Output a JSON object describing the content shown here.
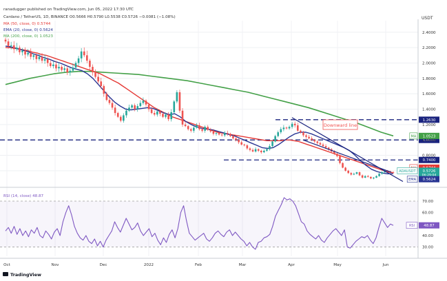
{
  "header": {
    "line1": "ranadugger published on TradingView.com, Jun 05, 2022 17:30 UTC",
    "line2": "Cardano / TetherUS, 1D, BINANCE  O0.5666  H0.5790  L0.5538  C0.5726  −0.0081 (−1.08%)",
    "ma50": "MA (50, close, 0)  0.5744",
    "ema20": "EMA (20, close, 0)  0.5624",
    "ma200": "MA (200, close, 0)  1.0523",
    "rsi": "RSI (14, close)  48.87"
  },
  "currency": "USDT",
  "footer": {
    "logo": "TradingView"
  },
  "annotation": "Downward line",
  "colors": {
    "up": "#26a69a",
    "down": "#ef5350",
    "ma50": "#e53935",
    "ema20": "#283593",
    "ma200": "#43a047",
    "rsi": "#7e57c2",
    "level": "#1a237e",
    "wedge": "#1a237e"
  },
  "chart_data": {
    "type": "candlestick",
    "ylim": [
      0.42,
      2.55
    ],
    "price_ticks": [
      "2.4000",
      "2.2000",
      "2.0000",
      "1.8000",
      "1.6000",
      "1.4000",
      "1.2000",
      "1.0000",
      "0.8000",
      "0.6000"
    ],
    "x_ticks": [
      "Oct",
      "Nov",
      "Dec",
      "2022",
      "Feb",
      "Mar",
      "Apr",
      "May",
      "Jun"
    ],
    "horizontal_levels": [
      {
        "value": 1.263,
        "label": "1.2630"
      },
      {
        "value": 1.0,
        "label": "1.0000"
      },
      {
        "value": 0.74,
        "label": "0.7400"
      }
    ],
    "price_badges": [
      {
        "tag": "MA",
        "label": "1.0523",
        "color": "#43a047"
      },
      {
        "tag": "MA",
        "label": "0.5744",
        "color": "#e53935"
      },
      {
        "tag": "ADAUSDT",
        "label": "0.5726",
        "sub": "06:29:04",
        "color": "#26a69a"
      },
      {
        "tag": "EMA",
        "label": "0.5624",
        "color": "#283593"
      }
    ],
    "trend_lines": [
      {
        "from": [
          "Mar 27",
          1.26
        ],
        "to": [
          "Jun 05",
          0.57
        ]
      },
      {
        "from": [
          "Apr 08",
          1.0
        ],
        "to": [
          "Jun 05",
          0.57
        ]
      }
    ],
    "closes": [
      2.28,
      2.22,
      2.23,
      2.18,
      2.2,
      2.14,
      2.16,
      2.11,
      2.13,
      2.08,
      2.1,
      2.05,
      2.08,
      2.03,
      2.05,
      2.0,
      1.96,
      1.98,
      1.93,
      1.95,
      1.91,
      1.93,
      1.88,
      1.9,
      1.94,
      2.0,
      2.06,
      2.15,
      2.1,
      2.03,
      1.95,
      1.88,
      1.82,
      1.76,
      1.7,
      1.6,
      1.52,
      1.48,
      1.42,
      1.35,
      1.3,
      1.25,
      1.32,
      1.38,
      1.42,
      1.45,
      1.4,
      1.44,
      1.48,
      1.51,
      1.46,
      1.4,
      1.35,
      1.33,
      1.37,
      1.34,
      1.3,
      1.33,
      1.27,
      1.36,
      1.5,
      1.62,
      1.38,
      1.2,
      1.18,
      1.14,
      1.12,
      1.16,
      1.19,
      1.14,
      1.12,
      1.17,
      1.13,
      1.11,
      1.08,
      1.09,
      1.07,
      1.06,
      1.09,
      1.08,
      1.05,
      1.02,
      1.0,
      0.97,
      0.94,
      0.93,
      0.89,
      0.87,
      0.85,
      0.88,
      0.86,
      0.84,
      0.86,
      0.88,
      0.92,
      0.98,
      1.05,
      1.1,
      1.14,
      1.16,
      1.15,
      1.17,
      1.21,
      1.19,
      1.12,
      1.1,
      1.06,
      1.04,
      1.02,
      1.0,
      0.98,
      0.96,
      0.94,
      0.92,
      0.9,
      0.88,
      0.85,
      0.82,
      0.79,
      0.7,
      0.64,
      0.6,
      0.57,
      0.55,
      0.56,
      0.58,
      0.54,
      0.51,
      0.53,
      0.52,
      0.5,
      0.51,
      0.53,
      0.56,
      0.58,
      0.6,
      0.59,
      0.58,
      0.5726
    ],
    "ma50": [
      2.2,
      2.2,
      2.19,
      2.18,
      2.17,
      2.16,
      2.14,
      2.13,
      2.11,
      2.1,
      2.08,
      2.06,
      2.04,
      2.02,
      2.0,
      1.98,
      1.96,
      1.94,
      1.92,
      1.9,
      1.88,
      1.86,
      1.83,
      1.8,
      1.77,
      1.74,
      1.7,
      1.66,
      1.62,
      1.58,
      1.54,
      1.5,
      1.46,
      1.42,
      1.39,
      1.36,
      1.33,
      1.3,
      1.28,
      1.26,
      1.24,
      1.22,
      1.2,
      1.18,
      1.16,
      1.14,
      1.12,
      1.1,
      1.09,
      1.08,
      1.07,
      1.06,
      1.05,
      1.04,
      1.03,
      1.02,
      1.01,
      1.0,
      0.99,
      0.99,
      0.99,
      0.99,
      1.0,
      1.0,
      0.99,
      0.98,
      0.96,
      0.94,
      0.92,
      0.9,
      0.88,
      0.86,
      0.84,
      0.82,
      0.8,
      0.78,
      0.76,
      0.74,
      0.72,
      0.7,
      0.68,
      0.66,
      0.64,
      0.62,
      0.6,
      0.58,
      0.5744
    ],
    "ema20": [
      2.22,
      2.21,
      2.19,
      2.17,
      2.15,
      2.12,
      2.1,
      2.07,
      2.05,
      2.02,
      2.0,
      1.97,
      1.94,
      1.92,
      1.9,
      1.86,
      1.8,
      1.72,
      1.64,
      1.56,
      1.49,
      1.44,
      1.4,
      1.39,
      1.4,
      1.41,
      1.42,
      1.41,
      1.38,
      1.35,
      1.33,
      1.34,
      1.3,
      1.24,
      1.2,
      1.17,
      1.15,
      1.14,
      1.13,
      1.11,
      1.09,
      1.07,
      1.05,
      1.02,
      0.99,
      0.96,
      0.93,
      0.9,
      0.89,
      0.9,
      0.94,
      0.99,
      1.04,
      1.08,
      1.1,
      1.1,
      1.08,
      1.05,
      1.02,
      0.99,
      0.96,
      0.93,
      0.9,
      0.86,
      0.8,
      0.73,
      0.67,
      0.62,
      0.59,
      0.57,
      0.56,
      0.5624
    ],
    "ma200": [
      1.72,
      1.76,
      1.8,
      1.83,
      1.86,
      1.88,
      1.89,
      1.89,
      1.88,
      1.87,
      1.86,
      1.85,
      1.83,
      1.81,
      1.79,
      1.77,
      1.74,
      1.71,
      1.68,
      1.65,
      1.62,
      1.58,
      1.54,
      1.5,
      1.46,
      1.42,
      1.37,
      1.32,
      1.27,
      1.22,
      1.16,
      1.1,
      1.0523
    ],
    "rsi": {
      "ylim": [
        22,
        76
      ],
      "ticks": [
        "70.00",
        "60.00",
        "50.00",
        "40.00",
        "30.00"
      ],
      "current": "48.87",
      "values": [
        44,
        47,
        42,
        48,
        41,
        46,
        40,
        44,
        39,
        45,
        42,
        47,
        40,
        38,
        44,
        41,
        37,
        43,
        46,
        40,
        52,
        60,
        66,
        58,
        48,
        42,
        38,
        36,
        40,
        35,
        33,
        37,
        31,
        35,
        30,
        36,
        40,
        44,
        52,
        47,
        43,
        49,
        55,
        50,
        45,
        47,
        51,
        44,
        40,
        43,
        46,
        39,
        42,
        36,
        32,
        38,
        34,
        41,
        45,
        38,
        46,
        60,
        66,
        53,
        42,
        39,
        36,
        38,
        40,
        42,
        37,
        35,
        38,
        42,
        44,
        41,
        39,
        43,
        45,
        40,
        43,
        40,
        37,
        35,
        31,
        34,
        30,
        28,
        34,
        35,
        38,
        39,
        41,
        48,
        57,
        62,
        67,
        73,
        71,
        72,
        70,
        66,
        59,
        52,
        50,
        44,
        41,
        39,
        37,
        40,
        36,
        34,
        38,
        41,
        44,
        46,
        43,
        40,
        45,
        30,
        29,
        32,
        35,
        37,
        39,
        38,
        40,
        36,
        33,
        38,
        47,
        55,
        51,
        47,
        50,
        48.87
      ]
    }
  }
}
